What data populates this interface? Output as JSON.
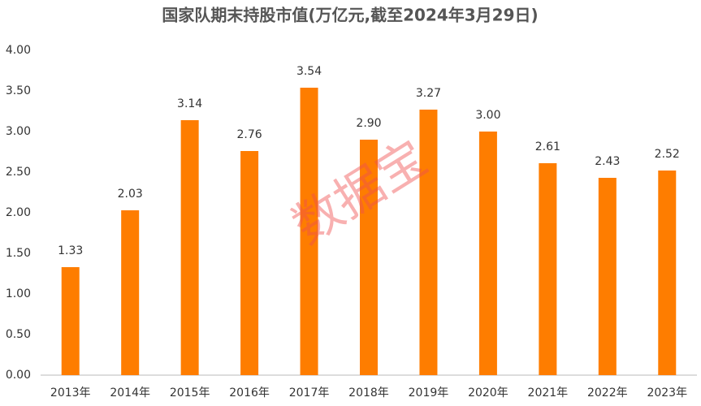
{
  "chart_data": {
    "type": "bar",
    "title": "国家队期末持股市值(万亿元,截至2024年3月29日)",
    "categories": [
      "2013年",
      "2014年",
      "2015年",
      "2016年",
      "2017年",
      "2018年",
      "2019年",
      "2020年",
      "2021年",
      "2022年",
      "2023年"
    ],
    "values": [
      1.33,
      2.03,
      3.14,
      2.76,
      3.54,
      2.9,
      3.27,
      3,
      2.61,
      2.43,
      2.52
    ],
    "value_labels": [
      "1.33",
      "2.03",
      "3.14",
      "2.76",
      "3.54",
      "2.90",
      "3.27",
      "3.00",
      "2.61",
      "2.43",
      "2.52"
    ],
    "color": "#fe7d00",
    "ylim": [
      0,
      4
    ],
    "yticks": [
      {
        "value": 0,
        "label": "0.00"
      },
      {
        "value": 0.5,
        "label": "0.50"
      },
      {
        "value": 1,
        "label": "1.00"
      },
      {
        "value": 1.5,
        "label": "1.50"
      },
      {
        "value": 2,
        "label": "2.00"
      },
      {
        "value": 2.5,
        "label": "2.50"
      },
      {
        "value": 3,
        "label": "3.00"
      },
      {
        "value": 3.5,
        "label": "3.50"
      },
      {
        "value": 4,
        "label": "4.00"
      }
    ],
    "grid": false,
    "watermark": "数据宝"
  }
}
